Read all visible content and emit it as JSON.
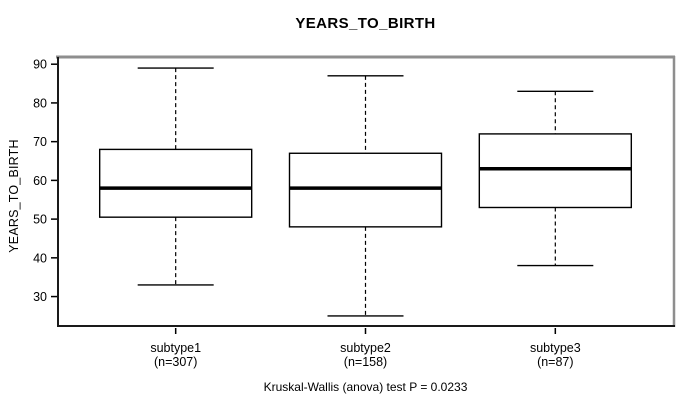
{
  "chart_data": {
    "type": "boxplot",
    "title": "YEARS_TO_BIRTH",
    "ylabel": "YEARS_TO_BIRTH",
    "caption": "Kruskal-Wallis (anova) test P = 0.0233",
    "ylim": [
      22.4,
      91.6
    ],
    "y_ticks": [
      30,
      40,
      50,
      60,
      70,
      80,
      90
    ],
    "grid": "off",
    "legend": "none",
    "groups": [
      {
        "label": "subtype1",
        "n_label": "(n=307)",
        "whisker_low": 33,
        "q1": 50.5,
        "median": 58,
        "q3": 68,
        "whisker_high": 89
      },
      {
        "label": "subtype2",
        "n_label": "(n=158)",
        "whisker_low": 25,
        "q1": 48,
        "median": 58,
        "q3": 67,
        "whisker_high": 87
      },
      {
        "label": "subtype3",
        "n_label": "(n=87)",
        "whisker_low": 38,
        "q1": 53,
        "median": 63,
        "q3": 72,
        "whisker_high": 83
      }
    ],
    "colors": {
      "line": "#000000",
      "box_fill": "#ffffff",
      "frame_top_right": "#8e8e8e",
      "frame_bottom_left": "#1a1a1a",
      "background": "#ffffff"
    }
  }
}
